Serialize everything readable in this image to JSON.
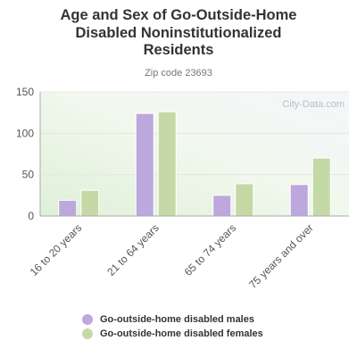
{
  "chart_data": {
    "type": "bar",
    "title": "Age and Sex of Go-Outside-Home Disabled Noninstitutionalized Residents",
    "title_lines": [
      "Age and Sex of Go-Outside-Home",
      "Disabled Noninstitutionalized",
      "Residents"
    ],
    "subtitle": "Zip code 23693",
    "categories": [
      "16 to 20 years",
      "21 to 64 years",
      "65 to 74 years",
      "75 years and over"
    ],
    "series": [
      {
        "name": "Go-outside-home disabled males",
        "color": "#bca8dc",
        "values": [
          19,
          124,
          25,
          38
        ]
      },
      {
        "name": "Go-outside-home disabled females",
        "color": "#c5d9a6",
        "values": [
          31,
          126,
          39,
          70
        ]
      }
    ],
    "y_ticks": [
      "0",
      "50",
      "100",
      "150"
    ],
    "ylim": [
      0,
      150
    ],
    "grid": true,
    "legend_position": "bottom",
    "watermark": "City-Data.com"
  }
}
